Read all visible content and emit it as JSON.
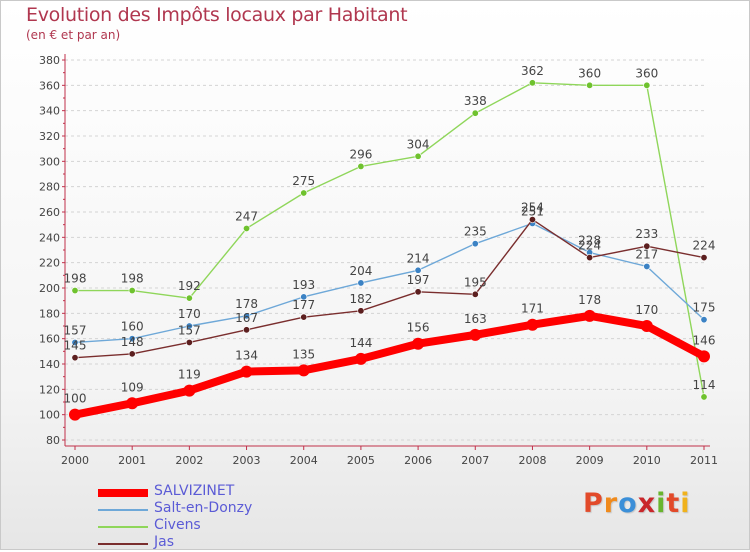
{
  "header": {
    "title": "Evolution des Impôts locaux par Habitant",
    "subtitle": "(en € et par an)"
  },
  "logo": {
    "text": "Proxiti",
    "letter_colors": [
      "#e24a2a",
      "#f08a1c",
      "#3b8fd8",
      "#c9272b",
      "#69b52e",
      "#e24a2a",
      "#f0b21c"
    ]
  },
  "chart_data": {
    "type": "line",
    "title": "Evolution des Impôts locaux par Habitant",
    "subtitle": "(en € et par an)",
    "xlabel": "",
    "ylabel": "",
    "x": [
      "2000",
      "2001",
      "2002",
      "2003",
      "2004",
      "2005",
      "2006",
      "2007",
      "2008",
      "2009",
      "2010",
      "2011"
    ],
    "ylim": [
      80,
      380
    ],
    "yticks": [
      80,
      100,
      120,
      140,
      160,
      180,
      200,
      220,
      240,
      260,
      280,
      300,
      320,
      340,
      360,
      380
    ],
    "grid": "horizontal-dashed",
    "legend_position": "bottom-left",
    "series": [
      {
        "name": "Civens",
        "color": "#8fd65a",
        "point_color": "#6fc22e",
        "values": [
          198,
          198,
          192,
          247,
          275,
          296,
          304,
          338,
          362,
          360,
          360,
          114
        ]
      },
      {
        "name": "Salt-en-Donzy",
        "color": "#6ea8d8",
        "point_color": "#3b82c4",
        "values": [
          157,
          160,
          170,
          178,
          193,
          204,
          214,
          235,
          251,
          228,
          217,
          175
        ]
      },
      {
        "name": "Jas",
        "color": "#7a2e2e",
        "point_color": "#5c1f1f",
        "values": [
          145,
          148,
          157,
          167,
          177,
          182,
          197,
          195,
          254,
          224,
          233,
          224
        ]
      },
      {
        "name": "SALVIZINET",
        "color": "#ff0000",
        "point_color": "#ff0000",
        "values": [
          100,
          109,
          119,
          134,
          135,
          144,
          156,
          163,
          171,
          178,
          170,
          146
        ]
      }
    ],
    "legend_order": [
      "SALVIZINET",
      "Salt-en-Donzy",
      "Civens",
      "Jas"
    ]
  }
}
